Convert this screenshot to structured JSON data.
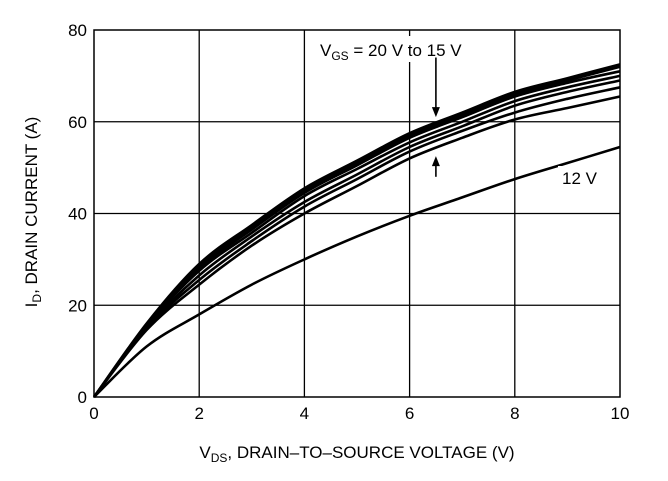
{
  "chart_data": {
    "type": "line",
    "title": "",
    "xlabel": {
      "main": "V",
      "sub": "DS",
      "rest": ", DRAIN–TO–SOURCE VOLTAGE (V)"
    },
    "ylabel": {
      "main": "I",
      "sub": "D",
      "rest": ", DRAIN CURRENT (A)"
    },
    "xlim": [
      0,
      10
    ],
    "ylim": [
      0,
      80
    ],
    "xticks": [
      0,
      2,
      4,
      6,
      8,
      10
    ],
    "yticks": [
      0,
      20,
      40,
      60,
      80
    ],
    "grid": true,
    "x": [
      0,
      1,
      2,
      3,
      4,
      5,
      6,
      7,
      8,
      9,
      10
    ],
    "series": [
      {
        "name": "20 V",
        "values": [
          0,
          16.0,
          29.0,
          37.5,
          45.5,
          51.5,
          57.5,
          62.0,
          66.5,
          69.5,
          72.5
        ]
      },
      {
        "name": "",
        "values": [
          0,
          15.8,
          28.5,
          37.0,
          45.0,
          51.0,
          57.0,
          61.5,
          66.0,
          69.0,
          72.0
        ]
      },
      {
        "name": "",
        "values": [
          0,
          15.6,
          28.0,
          36.5,
          44.5,
          50.5,
          56.5,
          61.0,
          65.5,
          68.5,
          71.0
        ]
      },
      {
        "name": "",
        "values": [
          0,
          15.4,
          27.5,
          35.8,
          43.8,
          49.7,
          55.5,
          60.0,
          64.5,
          67.5,
          70.0
        ]
      },
      {
        "name": "",
        "values": [
          0,
          15.1,
          26.5,
          35.0,
          42.5,
          48.5,
          54.5,
          59.0,
          63.5,
          66.5,
          69.0
        ]
      },
      {
        "name": "",
        "values": [
          0,
          14.9,
          25.5,
          34.0,
          41.5,
          47.5,
          53.5,
          58.0,
          62.0,
          65.0,
          67.5
        ]
      },
      {
        "name": "15 V",
        "values": [
          0,
          14.6,
          24.5,
          33.0,
          40.0,
          46.0,
          52.0,
          56.5,
          60.5,
          63.0,
          65.5
        ]
      },
      {
        "name": "12 V",
        "values": [
          0,
          11.0,
          18.0,
          24.5,
          30.0,
          35.0,
          39.5,
          43.5,
          47.5,
          51.0,
          54.5
        ]
      }
    ],
    "annotations": {
      "vgs_label": {
        "main": "V",
        "sub": "GS",
        "rest": " = 20 V to 15 V"
      },
      "low_label": "12 V",
      "arrows": [
        {
          "x": 6.5,
          "from": 74,
          "to": 61
        },
        {
          "x": 6.5,
          "from": 48,
          "to": 52.5
        }
      ]
    }
  }
}
